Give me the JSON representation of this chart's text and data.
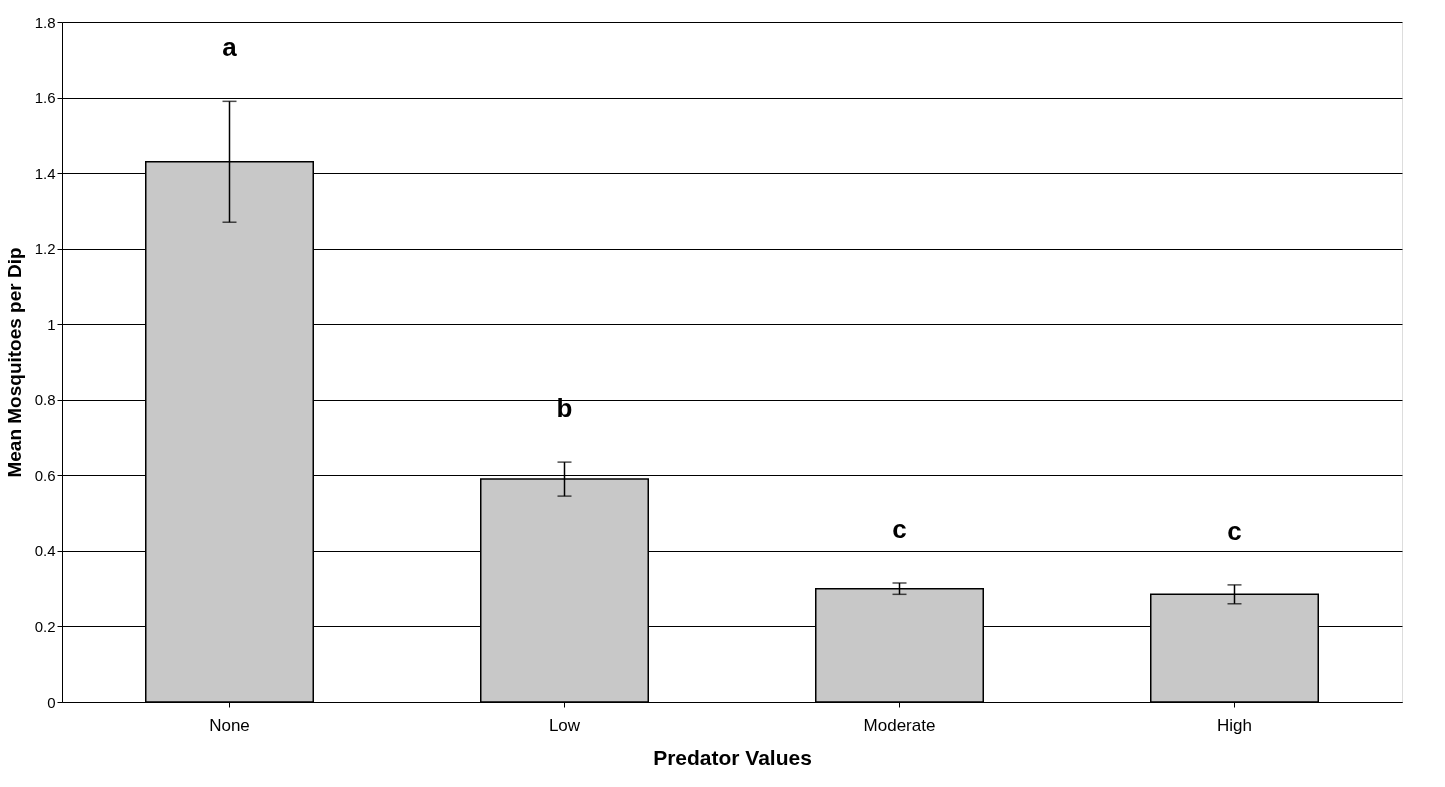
{
  "chart_data": {
    "type": "bar",
    "xlabel": "Predator Values",
    "ylabel": "Mean Mosquitoes per Dip",
    "categories": [
      "None",
      "Low",
      "Moderate",
      "High"
    ],
    "values": [
      1.43,
      0.59,
      0.3,
      0.285
    ],
    "errors": [
      0.16,
      0.045,
      0.015,
      0.025
    ],
    "color": "#c8c8c8",
    "ylim": [
      0,
      1.8
    ],
    "yticks": [
      0,
      0.2,
      0.4,
      0.6,
      0.8,
      1,
      1.2,
      1.4,
      1.6,
      1.8
    ],
    "grid": "y",
    "annotations": [
      "a",
      "b",
      "c",
      "c"
    ]
  }
}
